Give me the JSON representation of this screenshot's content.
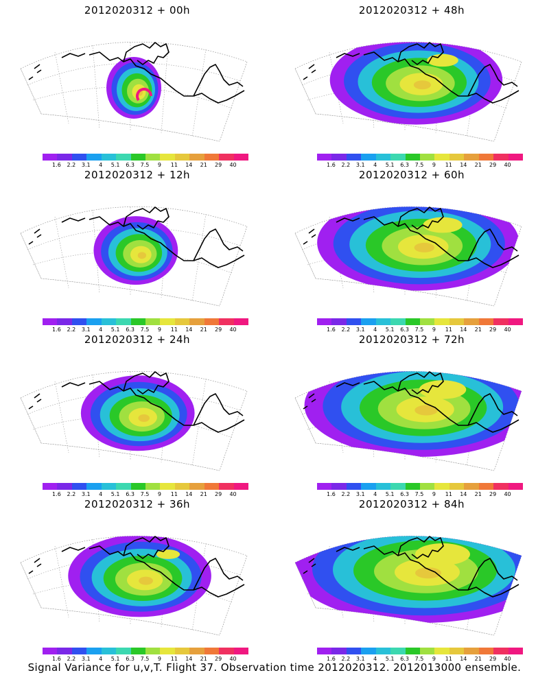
{
  "colorbar": {
    "labels": [
      "1.6",
      "2.2",
      "3.1",
      "4",
      "5.1",
      "6.3",
      "7.5",
      "9",
      "11",
      "14",
      "21",
      "29",
      "40"
    ],
    "colors": [
      "#a020f0",
      "#7a28e8",
      "#3050f0",
      "#1aa0f0",
      "#28c0d8",
      "#3cd8b0",
      "#2ac828",
      "#a0e040",
      "#e6e63c",
      "#e6c83c",
      "#e6a03c",
      "#f07838",
      "#f03060",
      "#f01880"
    ]
  },
  "panels": [
    {
      "title": "2012020312 + 00h",
      "lead": 0
    },
    {
      "title": "2012020312 + 48h",
      "lead": 48
    },
    {
      "title": "2012020312 + 12h",
      "lead": 12
    },
    {
      "title": "2012020312 + 60h",
      "lead": 60
    },
    {
      "title": "2012020312 + 24h",
      "lead": 24
    },
    {
      "title": "2012020312 + 72h",
      "lead": 72
    },
    {
      "title": "2012020312 + 36h",
      "lead": 36
    },
    {
      "title": "2012020312 + 84h",
      "lead": 84
    }
  ],
  "caption": "Signal Variance for u,v,T. Flight 37. Observation time 2012020312. 2012013000 ensemble."
}
